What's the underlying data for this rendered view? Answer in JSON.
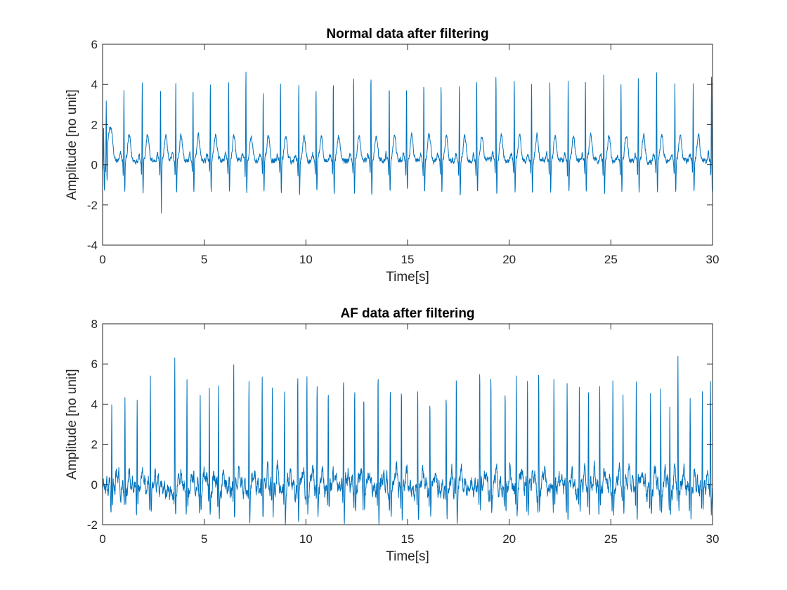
{
  "chart_data": [
    {
      "type": "line",
      "title": "Normal data after filtering",
      "xlabel": "Time[s]",
      "ylabel": "Amplitude [no unit]",
      "xlim": [
        0,
        30
      ],
      "ylim": [
        -4,
        6
      ],
      "xticks": [
        0,
        5,
        10,
        15,
        20,
        25,
        30
      ],
      "yticks": [
        -4,
        -2,
        0,
        2,
        4,
        6
      ],
      "grid": false,
      "color": "#0072BD",
      "series": [
        {
          "description": "filtered ECG, sinus rhythm; R-peak times (s) and amplitudes",
          "baseline": 0.2,
          "r_peaks": [
            [
              0.05,
              1.7
            ],
            [
              0.18,
              3.0
            ],
            [
              1.05,
              3.7
            ],
            [
              1.95,
              4.1
            ],
            [
              2.85,
              3.7
            ],
            [
              3.6,
              4.2
            ],
            [
              4.45,
              3.7
            ],
            [
              5.3,
              4.2
            ],
            [
              6.2,
              4.2
            ],
            [
              7.05,
              4.7
            ],
            [
              7.9,
              3.7
            ],
            [
              8.75,
              4.1
            ],
            [
              9.65,
              4.2
            ],
            [
              10.5,
              4.1
            ],
            [
              11.35,
              4.2
            ],
            [
              12.35,
              4.6
            ],
            [
              13.2,
              4.75
            ],
            [
              14.1,
              4.1
            ],
            [
              14.95,
              4.1
            ],
            [
              15.8,
              4.2
            ],
            [
              16.65,
              4.1
            ],
            [
              17.55,
              4.2
            ],
            [
              18.4,
              4.5
            ],
            [
              19.35,
              4.6
            ],
            [
              20.25,
              4.4
            ],
            [
              21.1,
              4.2
            ],
            [
              22.0,
              4.2
            ],
            [
              22.9,
              4.2
            ],
            [
              23.75,
              4.2
            ],
            [
              24.65,
              4.6
            ],
            [
              25.5,
              4.1
            ],
            [
              26.35,
              4.4
            ],
            [
              27.25,
              4.6
            ],
            [
              28.15,
              4.1
            ],
            [
              29.05,
              4.1
            ],
            [
              29.95,
              4.5
            ]
          ],
          "min": -2.4
        }
      ]
    },
    {
      "type": "line",
      "title": "AF data after filtering",
      "xlabel": "Time[s]",
      "ylabel": "Amplitude [no unit]",
      "xlim": [
        0,
        30
      ],
      "ylim": [
        -2,
        8
      ],
      "xticks": [
        0,
        5,
        10,
        15,
        20,
        25,
        30
      ],
      "yticks": [
        -2,
        0,
        2,
        4,
        6,
        8
      ],
      "grid": false,
      "color": "#0072BD",
      "series": [
        {
          "description": "filtered ECG, atrial fibrillation; irregular R-peak times (s) and amplitudes",
          "baseline": -0.2,
          "r_peaks": [
            [
              0.45,
              4.3
            ],
            [
              1.1,
              4.2
            ],
            [
              1.7,
              4.5
            ],
            [
              2.35,
              5.8
            ],
            [
              3.55,
              6.4
            ],
            [
              4.15,
              4.8
            ],
            [
              4.8,
              4.8
            ],
            [
              5.25,
              4.8
            ],
            [
              5.7,
              5.2
            ],
            [
              6.45,
              6.0
            ],
            [
              7.2,
              4.9
            ],
            [
              7.85,
              5.3
            ],
            [
              8.35,
              5.2
            ],
            [
              8.95,
              5.0
            ],
            [
              9.6,
              5.4
            ],
            [
              10.05,
              5.3
            ],
            [
              10.55,
              4.8
            ],
            [
              11.1,
              5.0
            ],
            [
              11.85,
              5.6
            ],
            [
              12.4,
              5.2
            ],
            [
              12.85,
              4.6
            ],
            [
              13.55,
              5.6
            ],
            [
              14.15,
              4.6
            ],
            [
              14.7,
              5.3
            ],
            [
              15.5,
              5.2
            ],
            [
              16.1,
              4.1
            ],
            [
              16.9,
              4.3
            ],
            [
              17.4,
              5.3
            ],
            [
              18.55,
              6.0
            ],
            [
              19.1,
              5.2
            ],
            [
              19.8,
              4.8
            ],
            [
              20.35,
              5.2
            ],
            [
              20.9,
              5.5
            ],
            [
              21.45,
              5.5
            ],
            [
              22.2,
              5.8
            ],
            [
              22.85,
              5.3
            ],
            [
              23.45,
              5.1
            ],
            [
              23.9,
              4.6
            ],
            [
              24.45,
              5.4
            ],
            [
              25.1,
              5.3
            ],
            [
              25.6,
              4.2
            ],
            [
              26.25,
              5.4
            ],
            [
              26.95,
              5.1
            ],
            [
              27.45,
              5.1
            ],
            [
              27.9,
              4.1
            ],
            [
              28.3,
              5.8
            ],
            [
              28.9,
              4.7
            ],
            [
              29.5,
              5.0
            ],
            [
              29.9,
              5.0
            ]
          ],
          "min": -1.75
        }
      ]
    }
  ]
}
